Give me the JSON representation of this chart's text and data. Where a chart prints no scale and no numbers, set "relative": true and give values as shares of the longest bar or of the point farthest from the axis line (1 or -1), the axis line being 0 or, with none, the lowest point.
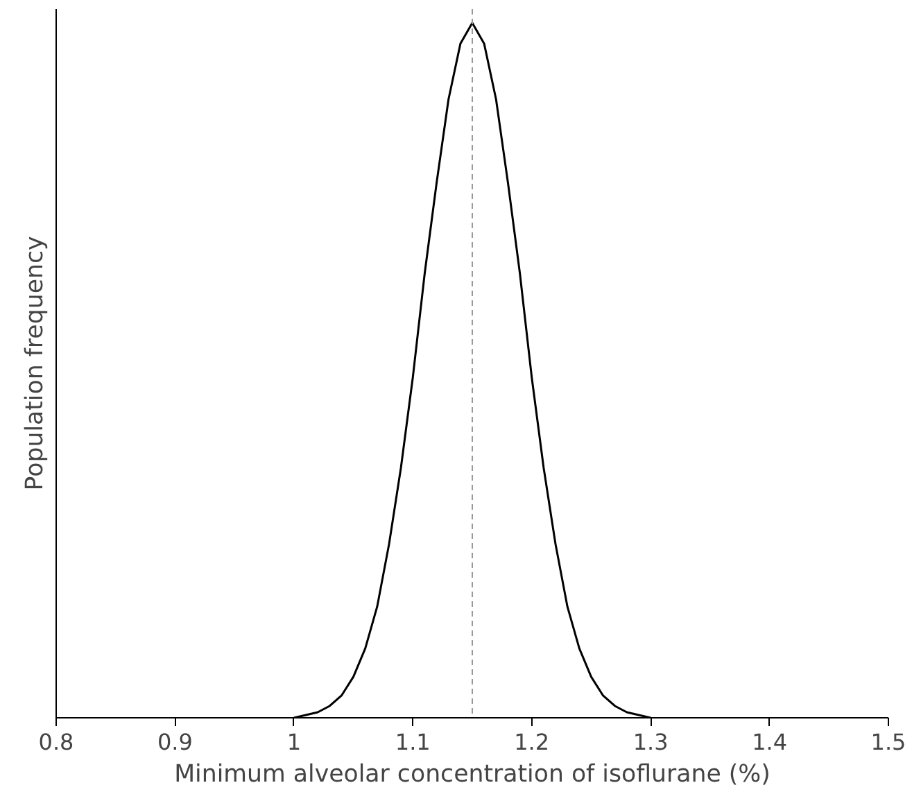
{
  "chart_data": {
    "type": "line",
    "relative": true,
    "xlabel": "Minimum alveolar concentration of isoflurane (%)",
    "ylabel": "Population frequency",
    "xlim": [
      0.8,
      1.5
    ],
    "xticks": [
      {
        "value": 0.8,
        "label": "0.8"
      },
      {
        "value": 0.9,
        "label": "0.9"
      },
      {
        "value": 1,
        "label": "1"
      },
      {
        "value": 1.1,
        "label": "1.1"
      },
      {
        "value": 1.2,
        "label": "1.2"
      },
      {
        "value": 1.3,
        "label": "1.3"
      },
      {
        "value": 1.4,
        "label": "1.4"
      },
      {
        "value": 1.5,
        "label": "1.5"
      }
    ],
    "grid": false,
    "marker": "none",
    "line_style": "solid",
    "x": [
      1.0,
      1.01,
      1.02,
      1.03,
      1.04,
      1.05,
      1.06,
      1.07,
      1.08,
      1.09,
      1.1,
      1.11,
      1.12,
      1.13,
      1.14,
      1.15,
      1.16,
      1.17,
      1.18,
      1.19,
      1.2,
      1.21,
      1.22,
      1.23,
      1.24,
      1.25,
      1.26,
      1.27,
      1.28,
      1.29,
      1.3
    ],
    "series": [
      {
        "color": "#000000",
        "values": [
          0.0,
          0.004,
          0.008,
          0.017,
          0.032,
          0.059,
          0.1,
          0.16,
          0.25,
          0.36,
          0.49,
          0.64,
          0.77,
          0.89,
          0.97,
          1.0,
          0.97,
          0.89,
          0.77,
          0.64,
          0.49,
          0.36,
          0.25,
          0.16,
          0.1,
          0.059,
          0.032,
          0.017,
          0.008,
          0.004,
          0.0
        ]
      }
    ],
    "ref_lines": [
      {
        "axis": "x",
        "value": 1.15,
        "color": "#999999",
        "line_style": "dashed"
      }
    ]
  }
}
